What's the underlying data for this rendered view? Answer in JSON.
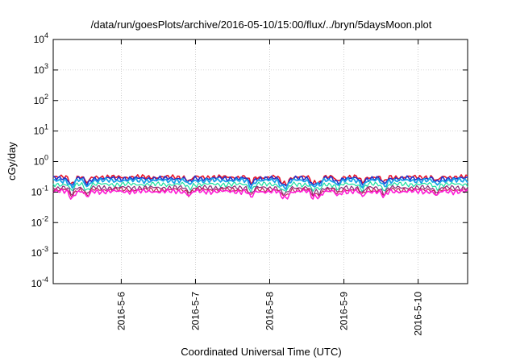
{
  "chart_data": {
    "type": "line",
    "title": "/data/run/goesPlots/archive/2016-05-10/15:00/flux/../bryn/5daysMoon.plot",
    "xlabel": "Coordinated Universal Time (UTC)",
    "ylabel": "cGy/day",
    "y_scale": "log",
    "ylim": [
      0.0001,
      10000
    ],
    "y_ticks": [
      {
        "value": 0.0001,
        "base": "10",
        "exp": "-4"
      },
      {
        "value": 0.001,
        "base": "10",
        "exp": "-3"
      },
      {
        "value": 0.01,
        "base": "10",
        "exp": "-2"
      },
      {
        "value": 0.1,
        "base": "10",
        "exp": "-1"
      },
      {
        "value": 1,
        "base": "10",
        "exp": "0"
      },
      {
        "value": 10,
        "base": "10",
        "exp": "1"
      },
      {
        "value": 100,
        "base": "10",
        "exp": "2"
      },
      {
        "value": 1000,
        "base": "10",
        "exp": "3"
      },
      {
        "value": 10000,
        "base": "10",
        "exp": "4"
      }
    ],
    "xlim": [
      "2016-05-05T02:00",
      "2016-05-10T16:00"
    ],
    "x_ticks": [
      {
        "value": "2016-05-06T00:00",
        "label": "2016-5-6"
      },
      {
        "value": "2016-05-07T00:00",
        "label": "2016-5-7"
      },
      {
        "value": "2016-05-08T00:00",
        "label": "2016-5-8"
      },
      {
        "value": "2016-05-09T00:00",
        "label": "2016-5-9"
      },
      {
        "value": "2016-05-10T00:00",
        "label": "2016-5-10"
      }
    ],
    "grid": true,
    "dips": [
      {
        "x": "2016-05-05T08:00",
        "factor": 0.55
      },
      {
        "x": "2016-05-05T13:00",
        "factor": 0.6
      },
      {
        "x": "2016-05-06T22:00",
        "factor": 0.7
      },
      {
        "x": "2016-05-07T18:00",
        "factor": 0.6
      },
      {
        "x": "2016-05-08T04:00",
        "factor": 0.65
      },
      {
        "x": "2016-05-08T05:30",
        "factor": 0.6
      },
      {
        "x": "2016-05-08T14:00",
        "factor": 0.6
      },
      {
        "x": "2016-05-08T16:00",
        "factor": 0.62
      },
      {
        "x": "2016-05-08T22:00",
        "factor": 0.7
      },
      {
        "x": "2016-05-09T06:00",
        "factor": 0.65
      },
      {
        "x": "2016-05-09T13:00",
        "factor": 0.62
      },
      {
        "x": "2016-05-10T06:00",
        "factor": 0.7
      }
    ],
    "series": [
      {
        "color": "#e8152a",
        "base": 0.31,
        "width": 1.6
      },
      {
        "color": "#2233cc",
        "base": 0.28,
        "width": 1.6
      },
      {
        "color": "#1aa3e8",
        "base": 0.24,
        "width": 1.8
      },
      {
        "color": "#19e0a0",
        "base": 0.18,
        "width": 1.2
      },
      {
        "color": "#8a2a7a",
        "base": 0.14,
        "width": 1.2
      },
      {
        "color": "#c21e56",
        "base": 0.12,
        "width": 1.2
      },
      {
        "color": "#ff1ed6",
        "base": 0.105,
        "width": 1.6
      }
    ]
  }
}
